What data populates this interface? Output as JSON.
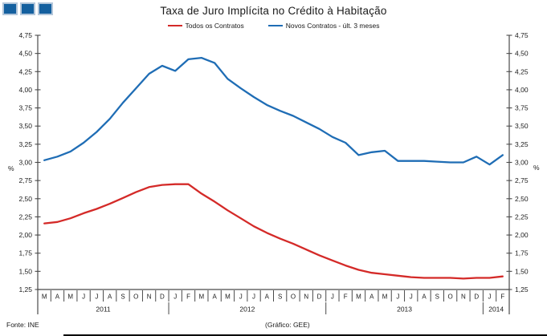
{
  "header": {
    "title": "Taxa de Juro Implícita no Crédito à Habitação"
  },
  "logo": {
    "squares": 3,
    "fill": "#14609f",
    "border": "#b3c6da"
  },
  "legend": {
    "items": [
      {
        "label": "Todos os Contratos",
        "color": "#d42a28"
      },
      {
        "label": "Novos Contratos - últ. 3 meses",
        "color": "#1f6db5"
      }
    ]
  },
  "chart_data": {
    "type": "line",
    "title": "Taxa de Juro Implícita no Crédito à Habitação",
    "ylabel_left": "%",
    "ylabel_right": "%",
    "unit": "%",
    "ylim": [
      1.25,
      4.75
    ],
    "ytick_step": 0.25,
    "grid": false,
    "legend_position": "top",
    "x_months": [
      "M",
      "A",
      "M",
      "J",
      "J",
      "A",
      "S",
      "O",
      "N",
      "D",
      "J",
      "F",
      "M",
      "A",
      "M",
      "J",
      "J",
      "A",
      "S",
      "O",
      "N",
      "D",
      "J",
      "F",
      "M",
      "A",
      "M",
      "J",
      "J",
      "A",
      "S",
      "O",
      "N",
      "D",
      "J",
      "F"
    ],
    "x_years": [
      {
        "label": "2011",
        "months": 10
      },
      {
        "label": "2012",
        "months": 12
      },
      {
        "label": "2013",
        "months": 12
      },
      {
        "label": "2014",
        "months": 2
      }
    ],
    "categories": [
      "2011-03",
      "2011-04",
      "2011-05",
      "2011-06",
      "2011-07",
      "2011-08",
      "2011-09",
      "2011-10",
      "2011-11",
      "2011-12",
      "2012-01",
      "2012-02",
      "2012-03",
      "2012-04",
      "2012-05",
      "2012-06",
      "2012-07",
      "2012-08",
      "2012-09",
      "2012-10",
      "2012-11",
      "2012-12",
      "2013-01",
      "2013-02",
      "2013-03",
      "2013-04",
      "2013-05",
      "2013-06",
      "2013-07",
      "2013-08",
      "2013-09",
      "2013-10",
      "2013-11",
      "2013-12",
      "2014-01",
      "2014-02"
    ],
    "series": [
      {
        "name": "Todos os Contratos",
        "color": "#d42a28",
        "values": [
          2.16,
          2.18,
          2.23,
          2.3,
          2.36,
          2.43,
          2.51,
          2.59,
          2.66,
          2.69,
          2.7,
          2.7,
          2.57,
          2.46,
          2.34,
          2.23,
          2.12,
          2.03,
          1.95,
          1.88,
          1.8,
          1.72,
          1.65,
          1.58,
          1.52,
          1.48,
          1.46,
          1.44,
          1.42,
          1.41,
          1.41,
          1.41,
          1.4,
          1.41,
          1.41,
          1.43
        ]
      },
      {
        "name": "Novos Contratos - últ. 3 meses",
        "color": "#1f6db5",
        "values": [
          3.03,
          3.08,
          3.15,
          3.27,
          3.42,
          3.6,
          3.82,
          4.02,
          4.22,
          4.33,
          4.26,
          4.42,
          4.44,
          4.37,
          4.15,
          4.02,
          3.9,
          3.79,
          3.71,
          3.64,
          3.55,
          3.46,
          3.35,
          3.27,
          3.1,
          3.14,
          3.16,
          3.02,
          3.02,
          3.02,
          3.01,
          3.0,
          3.0,
          3.08,
          2.97,
          3.1
        ]
      }
    ]
  },
  "footer": {
    "source": "Fonte:  INE",
    "credit": "(Gráfico:  GEE)"
  }
}
